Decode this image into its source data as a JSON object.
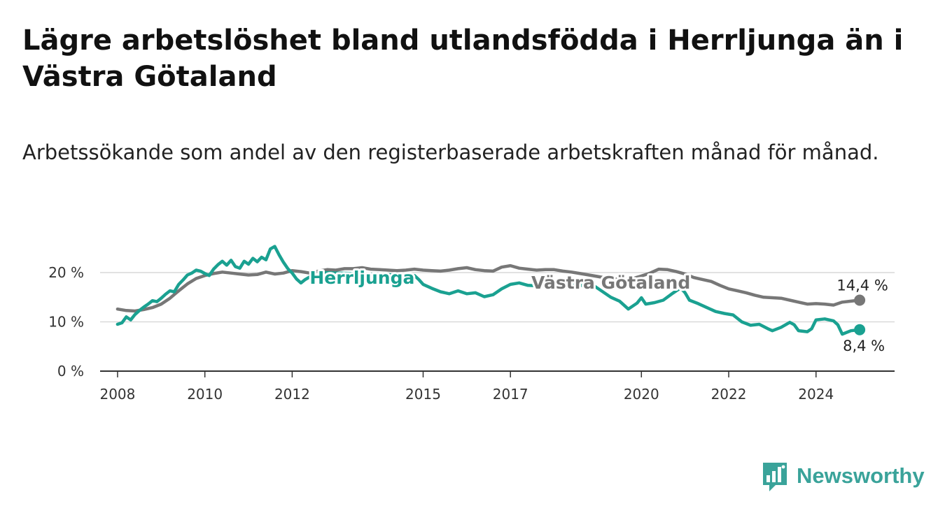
{
  "title": "Lägre arbetslöshet bland utlandsfödda i Herrljunga än i Västra Götaland",
  "subtitle": "Arbetssökande som andel av den registerbaserade arbetskraften månad för månad.",
  "brand": {
    "name": "Newsworthy",
    "color": "#3aa39a"
  },
  "chart_data": {
    "type": "line",
    "title": "Lägre arbetslöshet bland utlandsfödda i Herrljunga än i Västra Götaland",
    "subtitle": "Arbetssökande som andel av den registerbaserade arbetskraften månad för månad.",
    "xlabel": "",
    "ylabel": "",
    "xlim": [
      2007.6,
      2025.8
    ],
    "ylim": [
      0,
      25
    ],
    "x_ticks": [
      {
        "value": 2008,
        "label": "2008"
      },
      {
        "value": 2010,
        "label": "2010"
      },
      {
        "value": 2012,
        "label": "2012"
      },
      {
        "value": 2015,
        "label": "2015"
      },
      {
        "value": 2017,
        "label": "2017"
      },
      {
        "value": 2020,
        "label": "2020"
      },
      {
        "value": 2022,
        "label": "2022"
      },
      {
        "value": 2024,
        "label": "2024"
      }
    ],
    "y_ticks": [
      {
        "value": 0,
        "label": "0 %"
      },
      {
        "value": 10,
        "label": "10 %"
      },
      {
        "value": 20,
        "label": "20 %"
      }
    ],
    "grid": true,
    "legend": "inline labels",
    "series": [
      {
        "name": "Västra Götaland",
        "color": "#777777",
        "end_label": "14,4 %",
        "points": [
          [
            2008.0,
            12.6
          ],
          [
            2008.2,
            12.3
          ],
          [
            2008.4,
            12.2
          ],
          [
            2008.6,
            12.5
          ],
          [
            2008.8,
            12.9
          ],
          [
            2009.0,
            13.6
          ],
          [
            2009.2,
            14.8
          ],
          [
            2009.4,
            16.3
          ],
          [
            2009.6,
            17.7
          ],
          [
            2009.8,
            18.8
          ],
          [
            2010.0,
            19.4
          ],
          [
            2010.2,
            19.8
          ],
          [
            2010.4,
            20.1
          ],
          [
            2010.6,
            19.9
          ],
          [
            2010.8,
            19.7
          ],
          [
            2011.0,
            19.5
          ],
          [
            2011.2,
            19.6
          ],
          [
            2011.4,
            20.1
          ],
          [
            2011.6,
            19.7
          ],
          [
            2011.8,
            19.9
          ],
          [
            2012.0,
            20.4
          ],
          [
            2012.2,
            20.2
          ],
          [
            2012.4,
            19.9
          ],
          [
            2012.6,
            20.3
          ],
          [
            2012.8,
            20.6
          ],
          [
            2013.0,
            20.5
          ],
          [
            2013.2,
            20.8
          ],
          [
            2013.4,
            20.8
          ],
          [
            2013.6,
            21.0
          ],
          [
            2013.8,
            20.7
          ],
          [
            2014.0,
            20.6
          ],
          [
            2014.2,
            20.5
          ],
          [
            2014.4,
            20.4
          ],
          [
            2014.6,
            20.5
          ],
          [
            2014.8,
            20.7
          ],
          [
            2015.0,
            20.5
          ],
          [
            2015.2,
            20.4
          ],
          [
            2015.4,
            20.3
          ],
          [
            2015.6,
            20.5
          ],
          [
            2015.8,
            20.8
          ],
          [
            2016.0,
            21.0
          ],
          [
            2016.2,
            20.6
          ],
          [
            2016.4,
            20.4
          ],
          [
            2016.6,
            20.3
          ],
          [
            2016.8,
            21.1
          ],
          [
            2017.0,
            21.4
          ],
          [
            2017.2,
            20.9
          ],
          [
            2017.4,
            20.7
          ],
          [
            2017.6,
            20.5
          ],
          [
            2017.8,
            20.6
          ],
          [
            2018.0,
            20.6
          ],
          [
            2018.2,
            20.3
          ],
          [
            2018.4,
            20.1
          ],
          [
            2018.6,
            19.8
          ],
          [
            2018.8,
            19.5
          ],
          [
            2019.0,
            19.2
          ],
          [
            2019.2,
            18.9
          ],
          [
            2019.4,
            18.7
          ],
          [
            2019.6,
            18.6
          ],
          [
            2019.8,
            18.8
          ],
          [
            2020.0,
            19.3
          ],
          [
            2020.2,
            19.9
          ],
          [
            2020.4,
            20.7
          ],
          [
            2020.6,
            20.6
          ],
          [
            2020.8,
            20.2
          ],
          [
            2021.0,
            19.7
          ],
          [
            2021.2,
            19.0
          ],
          [
            2021.4,
            18.6
          ],
          [
            2021.6,
            18.2
          ],
          [
            2021.8,
            17.4
          ],
          [
            2022.0,
            16.7
          ],
          [
            2022.2,
            16.3
          ],
          [
            2022.4,
            15.9
          ],
          [
            2022.6,
            15.4
          ],
          [
            2022.8,
            15.0
          ],
          [
            2023.0,
            14.9
          ],
          [
            2023.2,
            14.8
          ],
          [
            2023.4,
            14.4
          ],
          [
            2023.6,
            14.0
          ],
          [
            2023.8,
            13.6
          ],
          [
            2024.0,
            13.7
          ],
          [
            2024.2,
            13.6
          ],
          [
            2024.4,
            13.4
          ],
          [
            2024.6,
            14.0
          ],
          [
            2024.8,
            14.2
          ],
          [
            2025.0,
            14.4
          ]
        ]
      },
      {
        "name": "Herrljunga",
        "color": "#1aa191",
        "end_label": "8,4 %",
        "points": [
          [
            2008.0,
            9.5
          ],
          [
            2008.1,
            9.8
          ],
          [
            2008.2,
            11.0
          ],
          [
            2008.3,
            10.4
          ],
          [
            2008.4,
            11.5
          ],
          [
            2008.5,
            12.3
          ],
          [
            2008.6,
            13.0
          ],
          [
            2008.7,
            13.6
          ],
          [
            2008.8,
            14.3
          ],
          [
            2008.9,
            14.1
          ],
          [
            2009.0,
            14.8
          ],
          [
            2009.1,
            15.6
          ],
          [
            2009.2,
            16.3
          ],
          [
            2009.3,
            16.1
          ],
          [
            2009.4,
            17.6
          ],
          [
            2009.5,
            18.5
          ],
          [
            2009.6,
            19.5
          ],
          [
            2009.7,
            19.9
          ],
          [
            2009.8,
            20.5
          ],
          [
            2009.9,
            20.3
          ],
          [
            2010.0,
            19.8
          ],
          [
            2010.1,
            19.4
          ],
          [
            2010.2,
            20.7
          ],
          [
            2010.3,
            21.6
          ],
          [
            2010.4,
            22.3
          ],
          [
            2010.5,
            21.5
          ],
          [
            2010.6,
            22.5
          ],
          [
            2010.7,
            21.2
          ],
          [
            2010.8,
            20.9
          ],
          [
            2010.9,
            22.3
          ],
          [
            2011.0,
            21.7
          ],
          [
            2011.1,
            22.9
          ],
          [
            2011.2,
            22.2
          ],
          [
            2011.3,
            23.1
          ],
          [
            2011.4,
            22.6
          ],
          [
            2011.5,
            24.8
          ],
          [
            2011.6,
            25.3
          ],
          [
            2011.7,
            23.6
          ],
          [
            2011.8,
            22.1
          ],
          [
            2011.9,
            20.8
          ],
          [
            2012.0,
            19.9
          ],
          [
            2012.1,
            18.7
          ],
          [
            2012.2,
            17.9
          ],
          [
            2012.3,
            18.6
          ],
          [
            2012.4,
            19.1
          ],
          [
            2012.5,
            18.6
          ],
          [
            2012.6,
            19.4
          ],
          [
            2012.7,
            20.0
          ],
          [
            2014.8,
            19.4
          ],
          [
            2014.9,
            18.6
          ],
          [
            2015.0,
            17.6
          ],
          [
            2015.2,
            16.8
          ],
          [
            2015.4,
            16.1
          ],
          [
            2015.6,
            15.7
          ],
          [
            2015.8,
            16.3
          ],
          [
            2016.0,
            15.7
          ],
          [
            2016.2,
            15.9
          ],
          [
            2016.4,
            15.1
          ],
          [
            2016.6,
            15.5
          ],
          [
            2016.8,
            16.7
          ],
          [
            2017.0,
            17.6
          ],
          [
            2017.2,
            17.9
          ],
          [
            2017.4,
            17.4
          ],
          [
            2017.6,
            17.3
          ],
          [
            2018.9,
            17.4
          ],
          [
            2019.1,
            16.2
          ],
          [
            2019.3,
            15.0
          ],
          [
            2019.5,
            14.2
          ],
          [
            2019.7,
            12.6
          ],
          [
            2019.9,
            13.8
          ],
          [
            2020.0,
            14.9
          ],
          [
            2020.1,
            13.6
          ],
          [
            2020.3,
            13.9
          ],
          [
            2020.5,
            14.4
          ],
          [
            2020.7,
            15.7
          ],
          [
            2020.9,
            16.9
          ],
          [
            2021.0,
            15.9
          ],
          [
            2021.1,
            14.4
          ],
          [
            2021.3,
            13.7
          ],
          [
            2021.5,
            12.9
          ],
          [
            2021.7,
            12.1
          ],
          [
            2021.9,
            11.7
          ],
          [
            2022.1,
            11.4
          ],
          [
            2022.3,
            10.0
          ],
          [
            2022.5,
            9.3
          ],
          [
            2022.7,
            9.5
          ],
          [
            2022.9,
            8.6
          ],
          [
            2023.0,
            8.2
          ],
          [
            2023.2,
            8.9
          ],
          [
            2023.4,
            9.9
          ],
          [
            2023.5,
            9.4
          ],
          [
            2023.6,
            8.2
          ],
          [
            2023.8,
            8.0
          ],
          [
            2023.9,
            8.6
          ],
          [
            2024.0,
            10.4
          ],
          [
            2024.2,
            10.6
          ],
          [
            2024.4,
            10.2
          ],
          [
            2024.5,
            9.4
          ],
          [
            2024.6,
            7.5
          ],
          [
            2024.8,
            8.2
          ],
          [
            2025.0,
            8.4
          ]
        ]
      }
    ]
  }
}
